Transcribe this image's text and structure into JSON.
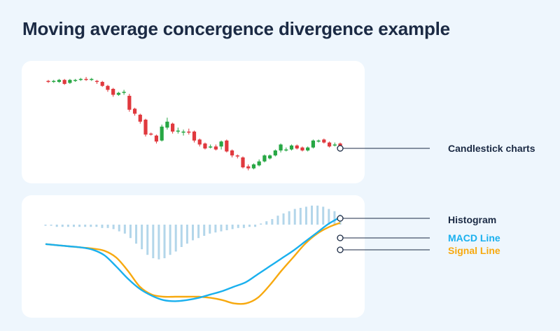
{
  "title": "Moving average concergence divergence example",
  "colors": {
    "background": "#eef6fd",
    "panel": "#ffffff",
    "candle_up": "#27a744",
    "candle_down": "#e0393e",
    "macd": "#1ab0ee",
    "signal": "#f7a90f",
    "histogram": "#b3d6ea",
    "leader": "#1b2a44",
    "title": "#1b2a44"
  },
  "labels": {
    "candlestick": "Candlestick charts",
    "histogram": "Histogram",
    "macd": "MACD Line",
    "signal": "Signal Line"
  },
  "chart_data": [
    {
      "type": "candlestick",
      "ylim": [
        0,
        100
      ],
      "candles": [
        {
          "o": 89,
          "c": 88,
          "h": 90,
          "l": 87
        },
        {
          "o": 88,
          "c": 89,
          "h": 90,
          "l": 87
        },
        {
          "o": 88,
          "c": 90,
          "h": 91,
          "l": 87
        },
        {
          "o": 90,
          "c": 86,
          "h": 91,
          "l": 85
        },
        {
          "o": 87,
          "c": 90,
          "h": 91,
          "l": 86
        },
        {
          "o": 89,
          "c": 90,
          "h": 91,
          "l": 88
        },
        {
          "o": 90,
          "c": 91,
          "h": 92,
          "l": 89
        },
        {
          "o": 91,
          "c": 90,
          "h": 93,
          "l": 89
        },
        {
          "o": 90,
          "c": 91,
          "h": 92,
          "l": 89
        },
        {
          "o": 89,
          "c": 88,
          "h": 90,
          "l": 86
        },
        {
          "o": 88,
          "c": 84,
          "h": 89,
          "l": 83
        },
        {
          "o": 84,
          "c": 80,
          "h": 85,
          "l": 78
        },
        {
          "o": 81,
          "c": 75,
          "h": 82,
          "l": 73
        },
        {
          "o": 75,
          "c": 77,
          "h": 78,
          "l": 74
        },
        {
          "o": 77,
          "c": 78,
          "h": 80,
          "l": 75
        },
        {
          "o": 74,
          "c": 60,
          "h": 76,
          "l": 58
        },
        {
          "o": 61,
          "c": 56,
          "h": 62,
          "l": 54
        },
        {
          "o": 55,
          "c": 48,
          "h": 56,
          "l": 46
        },
        {
          "o": 50,
          "c": 35,
          "h": 51,
          "l": 33
        },
        {
          "o": 36,
          "c": 35,
          "h": 37,
          "l": 34
        },
        {
          "o": 34,
          "c": 28,
          "h": 35,
          "l": 26
        },
        {
          "o": 29,
          "c": 43,
          "h": 45,
          "l": 28
        },
        {
          "o": 42,
          "c": 48,
          "h": 52,
          "l": 40
        },
        {
          "o": 46,
          "c": 38,
          "h": 47,
          "l": 36
        },
        {
          "o": 39,
          "c": 39,
          "h": 42,
          "l": 36
        },
        {
          "o": 37,
          "c": 38,
          "h": 40,
          "l": 34
        },
        {
          "o": 38,
          "c": 37,
          "h": 41,
          "l": 35
        },
        {
          "o": 38,
          "c": 29,
          "h": 39,
          "l": 27
        },
        {
          "o": 30,
          "c": 25,
          "h": 31,
          "l": 23
        },
        {
          "o": 26,
          "c": 21,
          "h": 27,
          "l": 20
        },
        {
          "o": 22,
          "c": 23,
          "h": 25,
          "l": 21
        },
        {
          "o": 23,
          "c": 20,
          "h": 25,
          "l": 19
        },
        {
          "o": 23,
          "c": 28,
          "h": 29,
          "l": 20
        },
        {
          "o": 29,
          "c": 18,
          "h": 30,
          "l": 17
        },
        {
          "o": 19,
          "c": 14,
          "h": 20,
          "l": 12
        },
        {
          "o": 14,
          "c": 13,
          "h": 15,
          "l": 11
        },
        {
          "o": 12,
          "c": 2,
          "h": 13,
          "l": 1
        },
        {
          "o": 3,
          "c": 1,
          "h": 5,
          "l": -1
        },
        {
          "o": 1,
          "c": 5,
          "h": 6,
          "l": 0
        },
        {
          "o": 4,
          "c": 8,
          "h": 10,
          "l": 3
        },
        {
          "o": 8,
          "c": 14,
          "h": 15,
          "l": 7
        },
        {
          "o": 11,
          "c": 14,
          "h": 15,
          "l": 10
        },
        {
          "o": 14,
          "c": 19,
          "h": 20,
          "l": 13
        },
        {
          "o": 19,
          "c": 25,
          "h": 26,
          "l": 17
        },
        {
          "o": 19,
          "c": 20,
          "h": 22,
          "l": 18
        },
        {
          "o": 20,
          "c": 24,
          "h": 25,
          "l": 19
        },
        {
          "o": 24,
          "c": 21,
          "h": 25,
          "l": 20
        },
        {
          "o": 22,
          "c": 19,
          "h": 23,
          "l": 18
        },
        {
          "o": 19,
          "c": 22,
          "h": 23,
          "l": 18
        },
        {
          "o": 22,
          "c": 29,
          "h": 30,
          "l": 21
        },
        {
          "o": 28,
          "c": 29,
          "h": 30,
          "l": 27
        },
        {
          "o": 30,
          "c": 27,
          "h": 31,
          "l": 26
        },
        {
          "o": 27,
          "c": 23,
          "h": 28,
          "l": 22
        },
        {
          "o": 24,
          "c": 25,
          "h": 27,
          "l": 23
        },
        {
          "o": 26,
          "c": 22,
          "h": 27,
          "l": 21
        }
      ]
    },
    {
      "type": "line",
      "ylim": [
        -50,
        50
      ],
      "x": [
        0,
        4,
        8,
        12,
        16,
        20,
        24,
        28,
        32,
        36,
        40,
        44,
        48,
        52,
        56,
        60,
        64,
        68,
        72,
        76,
        80,
        84,
        88,
        92,
        96,
        100
      ],
      "series": [
        {
          "name": "MACD Line",
          "values": [
            12,
            11,
            10,
            9,
            7,
            2,
            -8,
            -19,
            -28,
            -34,
            -38,
            -39,
            -38,
            -36,
            -33,
            -30,
            -26,
            -22,
            -15,
            -8,
            -1,
            6,
            14,
            22,
            30,
            36
          ]
        },
        {
          "name": "Signal Line",
          "values": [
            12,
            11,
            10,
            9,
            8,
            6,
            0,
            -12,
            -26,
            -33,
            -35,
            -35,
            -35,
            -35,
            -36,
            -38,
            -41,
            -41,
            -36,
            -25,
            -12,
            0,
            12,
            21,
            27,
            31
          ]
        }
      ]
    },
    {
      "type": "bar",
      "ylim": [
        -50,
        50
      ],
      "values": [
        -1,
        -1,
        -2,
        -2,
        -2,
        -2,
        -2,
        -2,
        -2,
        -2,
        -3,
        -3,
        -4,
        -6,
        -8,
        -12,
        -17,
        -22,
        -27,
        -30,
        -31,
        -30,
        -27,
        -24,
        -20,
        -17,
        -14,
        -12,
        -10,
        -8,
        -7,
        -6,
        -5,
        -4,
        -3,
        -3,
        -2,
        -2,
        1,
        3,
        5,
        8,
        10,
        12,
        14,
        15,
        16,
        17,
        17,
        16,
        14,
        12,
        9
      ]
    }
  ]
}
